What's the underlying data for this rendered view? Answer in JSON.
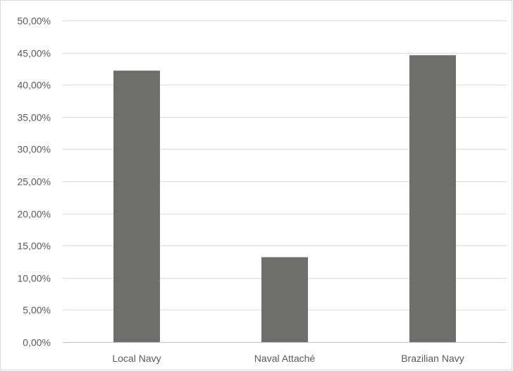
{
  "chart_data": {
    "type": "bar",
    "categories": [
      "Local Navy",
      "Naval Attaché",
      "Brazilian Navy"
    ],
    "values": [
      42.2,
      13.2,
      44.6
    ],
    "y_ticks": [
      "0,00%",
      "5,00%",
      "10,00%",
      "15,00%",
      "20,00%",
      "25,00%",
      "30,00%",
      "35,00%",
      "40,00%",
      "45,00%",
      "50,00%"
    ],
    "ylim": [
      0,
      50
    ],
    "ytick_step": 5,
    "grid": true,
    "legend": "none",
    "colors": {
      "bar": "#6e6e6c",
      "grid": "#d9d9d9",
      "axis": "#bfbfbf",
      "text": "#595959",
      "border": "#d9d9d9"
    }
  }
}
